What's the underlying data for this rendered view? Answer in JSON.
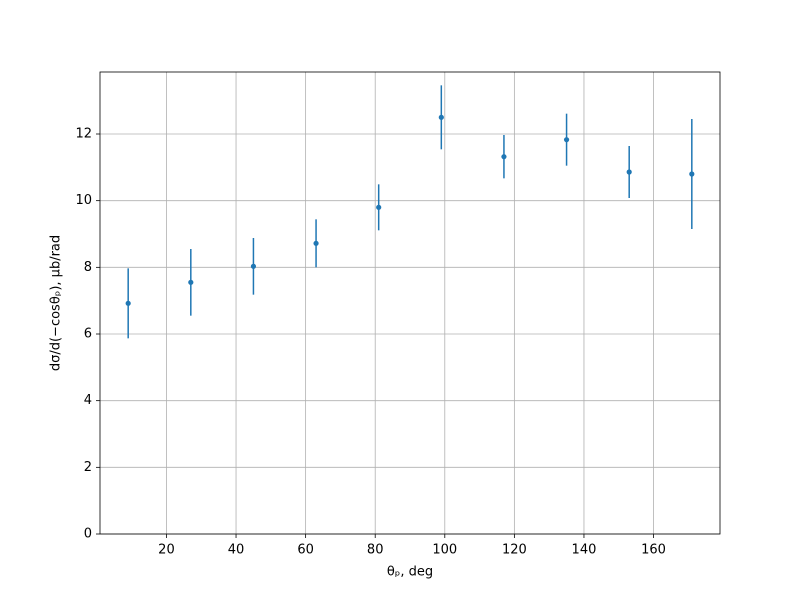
{
  "chart_data": {
    "type": "errorbar",
    "x_label": "θₚ, deg",
    "y_label": "dσ/d(−cosθₚ), μb/rad",
    "x": [
      9,
      27,
      45,
      63,
      81,
      99,
      117,
      135,
      153,
      171
    ],
    "values": [
      6.92,
      7.55,
      8.03,
      8.72,
      9.8,
      12.5,
      11.32,
      11.83,
      10.86,
      10.8
    ],
    "errors": [
      1.05,
      1.0,
      0.85,
      0.72,
      0.69,
      0.96,
      0.65,
      0.78,
      0.78,
      1.65
    ],
    "color": "#1f77b4",
    "xlim": [
      0.9,
      179.1
    ],
    "xticks": [
      20,
      40,
      60,
      80,
      100,
      120,
      140,
      160
    ],
    "ylim": [
      0,
      13.86
    ],
    "yticks": [
      0,
      2,
      4,
      6,
      8,
      10,
      12
    ],
    "grid": true
  }
}
